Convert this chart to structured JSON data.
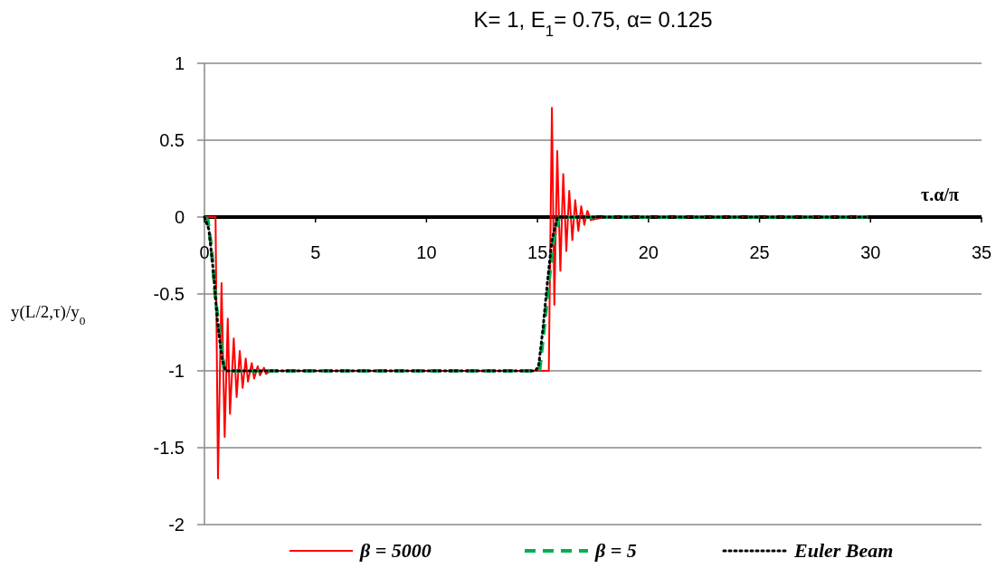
{
  "chart_data": {
    "type": "line",
    "title": "K= 1, E$_{1}$= 0.75, α= 0.125",
    "xlabel": "τ.α/π",
    "ylabel": "y(L/2,τ)/y$_{0}$",
    "xlim": [
      0,
      35
    ],
    "xticks": [
      0,
      5,
      10,
      15,
      20,
      25,
      30,
      35
    ],
    "ylim": [
      -2,
      1
    ],
    "yticks": [
      -2,
      -1.5,
      -1,
      -0.5,
      0,
      0.5,
      1
    ],
    "grid": "y",
    "legend": "bottom",
    "series": [
      {
        "name": "β = 5000",
        "color": "#ff0000",
        "line_style": "solid",
        "x": [
          0,
          0.3,
          0.5,
          0.61,
          0.77,
          0.91,
          1.05,
          1.15,
          1.32,
          1.45,
          1.59,
          1.72,
          1.86,
          1.96,
          2.13,
          2.24,
          2.4,
          2.5,
          2.68,
          2.77,
          3,
          10,
          15.3,
          15.51,
          15.65,
          15.76,
          15.89,
          16.03,
          16.16,
          16.3,
          16.43,
          16.57,
          16.7,
          16.84,
          16.97,
          17.11,
          17.25,
          17.4,
          18,
          30
        ],
        "values": [
          0,
          0,
          0,
          -1.7,
          -0.43,
          -1.43,
          -0.66,
          -1.28,
          -0.79,
          -1.17,
          -0.87,
          -1.11,
          -0.92,
          -1.07,
          -0.95,
          -1.05,
          -0.97,
          -1.03,
          -0.98,
          -1.02,
          -1,
          -1,
          -1,
          -1,
          0.71,
          -0.57,
          0.43,
          -0.35,
          0.28,
          -0.22,
          0.17,
          -0.15,
          0.11,
          -0.09,
          0.07,
          -0.05,
          0.04,
          -0.02,
          0,
          0
        ]
      },
      {
        "name": "β = 5",
        "color": "#00b050",
        "line_style": "dashed",
        "x": [
          0,
          0.15,
          0.3,
          0.5,
          0.68,
          0.91,
          5,
          10,
          15,
          15.1,
          15.3,
          15.51,
          15.71,
          15.98,
          20,
          30
        ],
        "values": [
          0,
          -0.02,
          -0.18,
          -0.53,
          -0.76,
          -1,
          -1,
          -1,
          -1,
          -0.99,
          -0.72,
          -0.43,
          -0.16,
          0,
          0,
          0
        ]
      },
      {
        "name": "Euler Beam",
        "color": "#000000",
        "line_style": "dotted",
        "x": [
          0,
          0.2,
          0.4,
          0.6,
          0.8,
          0.95,
          5,
          10,
          14.9,
          15.05,
          15.25,
          15.45,
          15.65,
          15.9,
          20,
          30
        ],
        "values": [
          0,
          -0.08,
          -0.35,
          -0.7,
          -0.93,
          -1,
          -1,
          -1,
          -1,
          -0.97,
          -0.72,
          -0.42,
          -0.15,
          0,
          0,
          0
        ]
      }
    ]
  }
}
